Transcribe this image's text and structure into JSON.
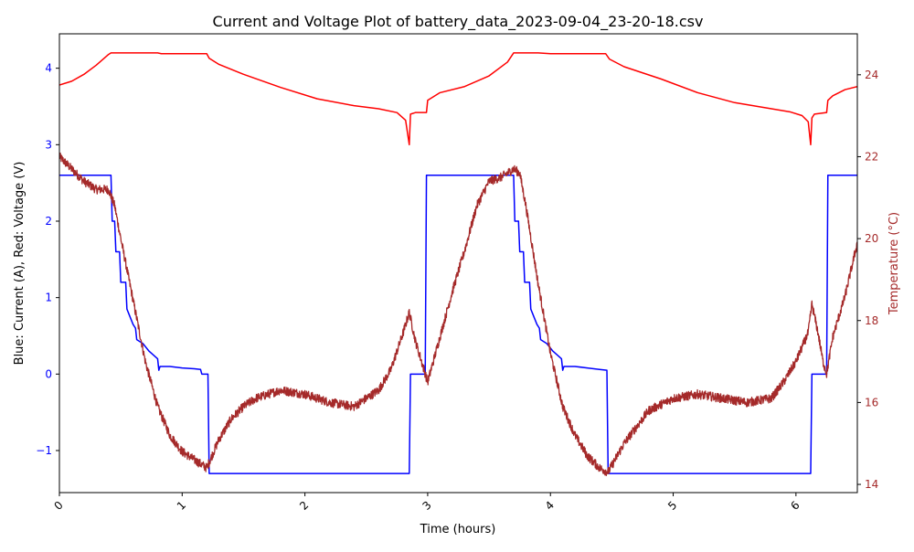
{
  "chart_data": {
    "type": "line",
    "title": "Current and Voltage Plot of battery_data_2023-09-04_23-20-18.csv",
    "xlabel": "Time (hours)",
    "ylabel_left": "Blue: Current (A), Red: Voltage (V)",
    "ylabel_right": "Temperature (°C)",
    "xlim": [
      0,
      6.5
    ],
    "ylim_left": [
      -1.55,
      4.45
    ],
    "ylim_right": [
      13.8,
      25.0
    ],
    "x_ticks": [
      0,
      1,
      2,
      3,
      4,
      5,
      6
    ],
    "x_tick_labels": [
      "0",
      "1",
      "2",
      "3",
      "4",
      "5",
      "6"
    ],
    "y_left_ticks": [
      -1,
      0,
      1,
      2,
      3,
      4
    ],
    "y_left_tick_labels": [
      "−1",
      "0",
      "1",
      "2",
      "3",
      "4"
    ],
    "y_right_ticks": [
      14,
      16,
      18,
      20,
      22,
      24
    ],
    "y_right_tick_labels": [
      "14",
      "16",
      "18",
      "20",
      "22",
      "24"
    ],
    "grid": false,
    "legend": "none",
    "colors": {
      "current": "#0000ff",
      "voltage": "#ff0000",
      "temperature": "#a52a2a",
      "left_axis": "#0000ff",
      "right_axis": "#a52a2a",
      "frame": "#000000"
    },
    "series": [
      {
        "key": "current",
        "axis": "left",
        "step": true,
        "x": [
          0,
          0.42,
          0.43,
          0.45,
          0.46,
          0.49,
          0.5,
          0.54,
          0.55,
          0.6,
          0.62,
          0.63,
          0.68,
          0.73,
          0.8,
          0.81,
          0.82,
          0.9,
          1.0,
          1.1,
          1.15,
          1.16,
          1.21,
          1.22,
          2.85,
          2.86,
          2.98,
          2.99,
          3.7,
          3.71,
          3.74,
          3.75,
          3.78,
          3.79,
          3.83,
          3.84,
          3.89,
          3.91,
          3.92,
          3.97,
          4.02,
          4.09,
          4.1,
          4.11,
          4.2,
          4.3,
          4.4,
          4.46,
          4.47,
          6.12,
          6.13,
          6.25,
          6.26,
          6.5
        ],
        "y": [
          2.6,
          2.6,
          2.0,
          2.0,
          1.6,
          1.6,
          1.2,
          1.2,
          0.85,
          0.65,
          0.6,
          0.45,
          0.4,
          0.3,
          0.2,
          0.05,
          0.1,
          0.1,
          0.08,
          0.07,
          0.06,
          0.0,
          0.0,
          -1.3,
          -1.3,
          0.0,
          0.0,
          2.6,
          2.6,
          2.0,
          2.0,
          1.6,
          1.6,
          1.2,
          1.2,
          0.85,
          0.65,
          0.6,
          0.45,
          0.4,
          0.3,
          0.2,
          0.05,
          0.1,
          0.1,
          0.08,
          0.06,
          0.05,
          -1.3,
          -1.3,
          0.0,
          0.0,
          2.6,
          2.6
        ]
      },
      {
        "key": "voltage",
        "axis": "left",
        "step": false,
        "x": [
          0,
          0.1,
          0.2,
          0.3,
          0.4,
          0.42,
          0.6,
          0.8,
          0.83,
          1.0,
          1.2,
          1.22,
          1.3,
          1.5,
          1.8,
          2.1,
          2.4,
          2.6,
          2.75,
          2.82,
          2.85,
          2.86,
          2.9,
          2.99,
          3.0,
          3.1,
          3.3,
          3.5,
          3.65,
          3.7,
          3.9,
          4.0,
          4.1,
          4.45,
          4.48,
          4.6,
          4.9,
          5.2,
          5.5,
          5.8,
          5.95,
          6.05,
          6.1,
          6.12,
          6.13,
          6.15,
          6.25,
          6.26,
          6.3,
          6.4,
          6.5
        ],
        "y": [
          3.78,
          3.83,
          3.92,
          4.04,
          4.18,
          4.2,
          4.2,
          4.2,
          4.19,
          4.19,
          4.19,
          4.13,
          4.05,
          3.92,
          3.75,
          3.6,
          3.51,
          3.47,
          3.42,
          3.32,
          3.0,
          3.4,
          3.42,
          3.42,
          3.58,
          3.68,
          3.76,
          3.9,
          4.08,
          4.2,
          4.2,
          4.19,
          4.19,
          4.19,
          4.12,
          4.02,
          3.86,
          3.68,
          3.55,
          3.47,
          3.43,
          3.38,
          3.3,
          3.0,
          3.35,
          3.4,
          3.42,
          3.58,
          3.64,
          3.72,
          3.76
        ]
      },
      {
        "key": "temperature",
        "axis": "right",
        "step": false,
        "noisy": true,
        "x": [
          0,
          0.1,
          0.2,
          0.3,
          0.4,
          0.45,
          0.5,
          0.6,
          0.7,
          0.8,
          0.9,
          1.0,
          1.1,
          1.2,
          1.3,
          1.4,
          1.5,
          1.6,
          1.8,
          2.0,
          2.2,
          2.4,
          2.6,
          2.7,
          2.8,
          2.85,
          2.9,
          3.0,
          3.1,
          3.2,
          3.3,
          3.4,
          3.5,
          3.6,
          3.7,
          3.75,
          3.8,
          3.9,
          4.0,
          4.1,
          4.2,
          4.3,
          4.4,
          4.47,
          4.6,
          4.8,
          5.0,
          5.2,
          5.4,
          5.6,
          5.8,
          5.9,
          6.0,
          6.1,
          6.13,
          6.18,
          6.22,
          6.25,
          6.3,
          6.4,
          6.5
        ],
        "y": [
          22.0,
          21.7,
          21.4,
          21.2,
          21.2,
          20.8,
          20.0,
          18.5,
          17.0,
          15.9,
          15.2,
          14.8,
          14.6,
          14.4,
          15.1,
          15.6,
          15.9,
          16.1,
          16.3,
          16.2,
          16.0,
          15.9,
          16.3,
          16.8,
          17.7,
          18.2,
          17.5,
          16.5,
          17.6,
          18.7,
          19.7,
          20.8,
          21.4,
          21.5,
          21.7,
          21.6,
          20.8,
          18.9,
          17.2,
          15.9,
          15.2,
          14.7,
          14.4,
          14.3,
          15.0,
          15.8,
          16.1,
          16.2,
          16.1,
          16.0,
          16.1,
          16.5,
          17.0,
          17.7,
          18.4,
          17.7,
          17.0,
          16.7,
          17.6,
          18.6,
          19.9
        ]
      }
    ]
  }
}
